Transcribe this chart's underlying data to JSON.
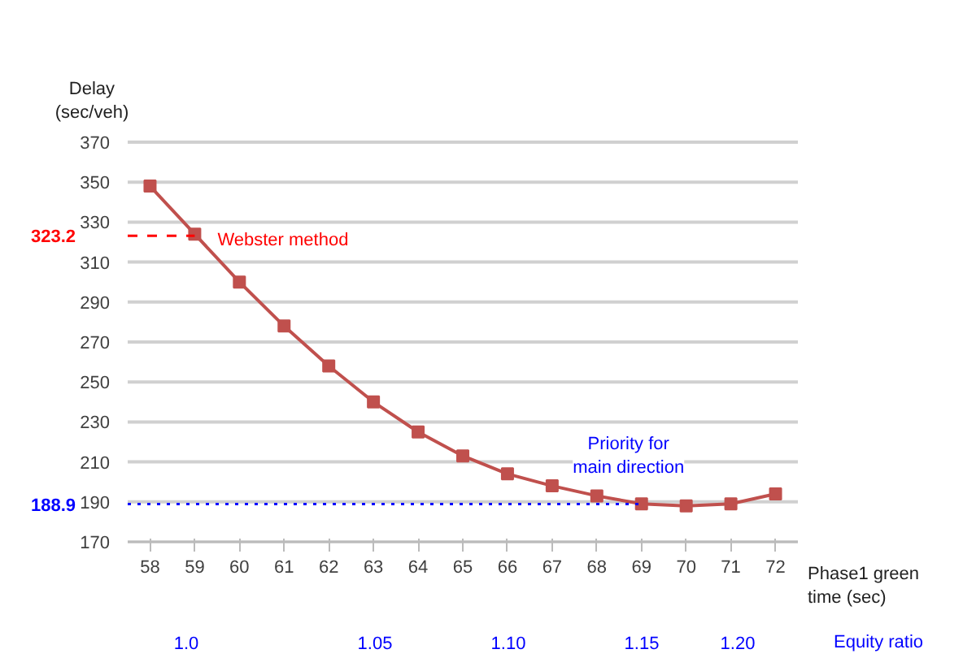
{
  "chart_data": {
    "type": "line",
    "xlabel": "Phase1 green\ntime (sec)",
    "ylabel": "Delay\n(sec/veh)",
    "categories": [
      "58",
      "59",
      "60",
      "61",
      "62",
      "63",
      "64",
      "65",
      "66",
      "67",
      "68",
      "69",
      "70",
      "71",
      "72"
    ],
    "series": [
      {
        "color": "#c0504d",
        "values": [
          348,
          324,
          300,
          278,
          258,
          240,
          225,
          213,
          204,
          198,
          193,
          189,
          188,
          189,
          194
        ]
      }
    ],
    "ylim": [
      170,
      370
    ],
    "yticks": [
      170,
      190,
      210,
      230,
      250,
      270,
      290,
      310,
      330,
      350,
      370
    ],
    "grid": "y",
    "marker": "square",
    "line_style": "solid",
    "ref_lines": [
      {
        "axis": "y",
        "value": 323.2,
        "label": "323.2",
        "color": "#ff0000",
        "line_style": "dashed"
      },
      {
        "axis": "y",
        "value": 188.9,
        "label": "188.9",
        "color": "#0000ff",
        "line_style": "dotted"
      }
    ],
    "annotations": [
      {
        "text": "Webster method",
        "x": "59",
        "y": 324
      },
      {
        "text": "Priority for\nmain direction",
        "x": "69",
        "y": 189
      },
      "1.0",
      "1.05",
      "1.10",
      "1.15",
      "1.20",
      "Equity ratio"
    ]
  }
}
